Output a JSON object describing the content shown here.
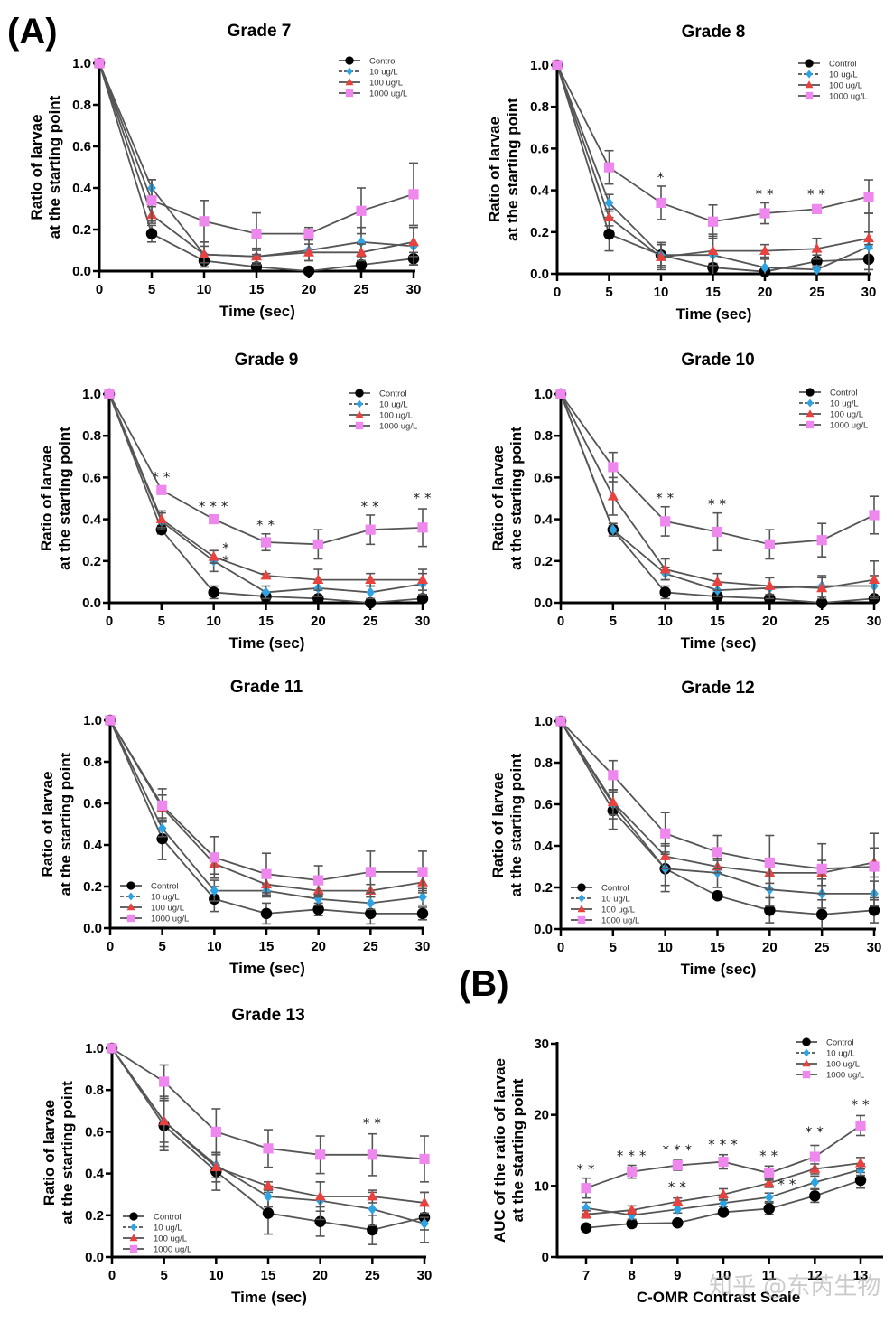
{
  "figure": {
    "panel_labels": {
      "A": "(A)",
      "B": "(B)"
    },
    "watermark": "知乎 @东芮生物",
    "series_styles": [
      {
        "name": "Control",
        "color": "#000000",
        "marker": "circle"
      },
      {
        "name": "10 ug/L",
        "color": "#2ea3e3",
        "marker": "diamond"
      },
      {
        "name": "100 ug/L",
        "color": "#e8423f",
        "marker": "triangle"
      },
      {
        "name": "1000 ug/L",
        "color": "#ee88ee",
        "marker": "square"
      }
    ],
    "line_color": "#555555"
  },
  "chart_data": [
    {
      "id": "grade7",
      "type": "line",
      "title": "Grade 7",
      "xlabel": "Time (sec)",
      "ylabel": [
        "Ratio of larvae",
        "at the starting point"
      ],
      "x": [
        0,
        5,
        10,
        15,
        20,
        25,
        30
      ],
      "xticks": [
        "0",
        "5",
        "10",
        "15",
        "20",
        "25",
        "30"
      ],
      "yticks": [
        "0.0",
        "0.2",
        "0.4",
        "0.6",
        "0.8",
        "1.0"
      ],
      "ylim": [
        0,
        1.0
      ],
      "legend": "top-right",
      "series": [
        {
          "name": "Control",
          "values": [
            1.0,
            0.18,
            0.05,
            0.02,
            0.0,
            0.03,
            0.06
          ],
          "errors": [
            0,
            0.04,
            0.03,
            0.02,
            0.0,
            0.02,
            0.03
          ]
        },
        {
          "name": "10 ug/L",
          "values": [
            1.0,
            0.4,
            0.08,
            0.07,
            0.1,
            0.14,
            0.12
          ],
          "errors": [
            0,
            0.04,
            0.06,
            0.04,
            0.05,
            0.07,
            0.09
          ]
        },
        {
          "name": "100 ug/L",
          "values": [
            1.0,
            0.27,
            0.08,
            0.07,
            0.09,
            0.09,
            0.14
          ],
          "errors": [
            0,
            0.04,
            0.04,
            0.03,
            0.04,
            0.04,
            0.07
          ]
        },
        {
          "name": "1000 ug/L",
          "values": [
            1.0,
            0.34,
            0.24,
            0.18,
            0.18,
            0.29,
            0.37
          ],
          "errors": [
            0,
            0.1,
            0.1,
            0.1,
            0.03,
            0.11,
            0.15
          ]
        }
      ],
      "annotations": []
    },
    {
      "id": "grade8",
      "type": "line",
      "title": "Grade 8",
      "xlabel": "Time (sec)",
      "ylabel": [
        "Ratio of larvae",
        "at the starting point"
      ],
      "x": [
        0,
        5,
        10,
        15,
        20,
        25,
        30
      ],
      "xticks": [
        "0",
        "5",
        "10",
        "15",
        "20",
        "25",
        "30"
      ],
      "yticks": [
        "0.0",
        "0.2",
        "0.4",
        "0.6",
        "0.8",
        "1.0"
      ],
      "ylim": [
        0,
        1.0
      ],
      "legend": "top-right",
      "series": [
        {
          "name": "Control",
          "values": [
            1.0,
            0.19,
            0.09,
            0.03,
            0.01,
            0.06,
            0.07
          ],
          "errors": [
            0,
            0.08,
            0.05,
            0.02,
            0.01,
            0.03,
            0.05
          ]
        },
        {
          "name": "10 ug/L",
          "values": [
            1.0,
            0.34,
            0.09,
            0.09,
            0.03,
            0.02,
            0.13
          ],
          "errors": [
            0,
            0.04,
            0.06,
            0.1,
            0.04,
            0.02,
            0.16
          ]
        },
        {
          "name": "100 ug/L",
          "values": [
            1.0,
            0.27,
            0.08,
            0.11,
            0.11,
            0.12,
            0.17
          ],
          "errors": [
            0,
            0.04,
            0.06,
            0.07,
            0.03,
            0.05,
            0.03
          ]
        },
        {
          "name": "1000 ug/L",
          "values": [
            1.0,
            0.51,
            0.34,
            0.25,
            0.29,
            0.31,
            0.37
          ],
          "errors": [
            0,
            0.08,
            0.08,
            0.08,
            0.05,
            0.02,
            0.08
          ]
        }
      ],
      "annotations": [
        {
          "x": 10,
          "y": 0.44,
          "text": "*"
        },
        {
          "x": 20,
          "y": 0.36,
          "text": "**"
        },
        {
          "x": 25,
          "y": 0.36,
          "text": "**"
        }
      ]
    },
    {
      "id": "grade9",
      "type": "line",
      "title": "Grade 9",
      "xlabel": "Time (sec)",
      "ylabel": [
        "Ratio of larvae",
        "at the starting point"
      ],
      "x": [
        0,
        5,
        10,
        15,
        20,
        25,
        30
      ],
      "xticks": [
        "0",
        "5",
        "10",
        "15",
        "20",
        "25",
        "30"
      ],
      "yticks": [
        "0.0",
        "0.2",
        "0.4",
        "0.6",
        "0.8",
        "1.0"
      ],
      "ylim": [
        0,
        1.0
      ],
      "legend": "top-right",
      "series": [
        {
          "name": "Control",
          "values": [
            1.0,
            0.35,
            0.05,
            0.03,
            0.02,
            0.0,
            0.02
          ],
          "errors": [
            0,
            0.02,
            0.03,
            0.02,
            0.01,
            0.01,
            0.01
          ]
        },
        {
          "name": "10 ug/L",
          "values": [
            1.0,
            0.39,
            0.2,
            0.05,
            0.07,
            0.05,
            0.09
          ],
          "errors": [
            0,
            0.04,
            0.05,
            0.03,
            0.04,
            0.03,
            0.05
          ]
        },
        {
          "name": "100 ug/L",
          "values": [
            1.0,
            0.4,
            0.22,
            0.13,
            0.11,
            0.11,
            0.11
          ],
          "errors": [
            0,
            0.04,
            0.03,
            0.01,
            0.05,
            0.03,
            0.05
          ]
        },
        {
          "name": "1000 ug/L",
          "values": [
            1.0,
            0.54,
            0.4,
            0.29,
            0.28,
            0.35,
            0.36
          ],
          "errors": [
            0,
            0.01,
            0.02,
            0.04,
            0.07,
            0.07,
            0.09
          ]
        }
      ],
      "annotations": [
        {
          "x": 5,
          "y": 0.58,
          "text": "**"
        },
        {
          "x": 10,
          "y": 0.44,
          "text": "***"
        },
        {
          "x": 15,
          "y": 0.35,
          "text": "**"
        },
        {
          "x": 25,
          "y": 0.44,
          "text": "**"
        },
        {
          "x": 30,
          "y": 0.48,
          "text": "**"
        },
        {
          "x": 11.2,
          "y": 0.24,
          "text": "*"
        },
        {
          "x": 11.2,
          "y": 0.18,
          "text": "*"
        }
      ]
    },
    {
      "id": "grade10",
      "type": "line",
      "title": "Grade 10",
      "xlabel": "Time (sec)",
      "ylabel": [
        "Ratio of larvae",
        "at the starting point"
      ],
      "x": [
        0,
        5,
        10,
        15,
        20,
        25,
        30
      ],
      "xticks": [
        "0",
        "5",
        "10",
        "15",
        "20",
        "25",
        "30"
      ],
      "yticks": [
        "0.0",
        "0.2",
        "0.4",
        "0.6",
        "0.8",
        "1.0"
      ],
      "ylim": [
        0,
        1.0
      ],
      "legend": "top-right",
      "series": [
        {
          "name": "Control",
          "values": [
            1.0,
            0.35,
            0.05,
            0.03,
            0.02,
            0.0,
            0.02
          ],
          "errors": [
            0,
            0.02,
            0.03,
            0.02,
            0.01,
            0.01,
            0.01
          ]
        },
        {
          "name": "10 ug/L",
          "values": [
            1.0,
            0.35,
            0.14,
            0.06,
            0.07,
            0.08,
            0.08
          ],
          "errors": [
            0,
            0.03,
            0.03,
            0.03,
            0.05,
            0.05,
            0.05
          ]
        },
        {
          "name": "100 ug/L",
          "values": [
            1.0,
            0.51,
            0.16,
            0.1,
            0.08,
            0.07,
            0.11
          ],
          "errors": [
            0,
            0.09,
            0.05,
            0.04,
            0.04,
            0.05,
            0.09
          ]
        },
        {
          "name": "1000 ug/L",
          "values": [
            1.0,
            0.65,
            0.39,
            0.34,
            0.28,
            0.3,
            0.42
          ],
          "errors": [
            0,
            0.07,
            0.07,
            0.09,
            0.07,
            0.08,
            0.09
          ]
        }
      ],
      "annotations": [
        {
          "x": 10,
          "y": 0.48,
          "text": "**"
        },
        {
          "x": 15,
          "y": 0.45,
          "text": "**"
        }
      ]
    },
    {
      "id": "grade11",
      "type": "line",
      "title": "Grade 11",
      "xlabel": "Time (sec)",
      "ylabel": [
        "Ratio of larvae",
        "at the starting point"
      ],
      "x": [
        0,
        5,
        10,
        15,
        20,
        25,
        30
      ],
      "xticks": [
        "0",
        "5",
        "10",
        "15",
        "20",
        "25",
        "30"
      ],
      "yticks": [
        "0.0",
        "0.2",
        "0.4",
        "0.6",
        "0.8",
        "1.0"
      ],
      "ylim": [
        0,
        1.0
      ],
      "legend": "bottom-left",
      "series": [
        {
          "name": "Control",
          "values": [
            1.0,
            0.43,
            0.14,
            0.07,
            0.09,
            0.07,
            0.07
          ],
          "errors": [
            0,
            0.1,
            0.06,
            0.05,
            0.03,
            0.05,
            0.03
          ]
        },
        {
          "name": "10 ug/L",
          "values": [
            1.0,
            0.48,
            0.18,
            0.18,
            0.14,
            0.12,
            0.15
          ],
          "errors": [
            0,
            0.04,
            0.05,
            0.03,
            0.03,
            0.03,
            0.04
          ]
        },
        {
          "name": "100 ug/L",
          "values": [
            1.0,
            0.58,
            0.31,
            0.21,
            0.18,
            0.18,
            0.22
          ],
          "errors": [
            0,
            0.06,
            0.05,
            0.04,
            0.03,
            0.03,
            0.04
          ]
        },
        {
          "name": "1000 ug/L",
          "values": [
            1.0,
            0.59,
            0.34,
            0.26,
            0.23,
            0.27,
            0.27
          ],
          "errors": [
            0,
            0.08,
            0.1,
            0.1,
            0.07,
            0.1,
            0.1
          ]
        }
      ],
      "annotations": []
    },
    {
      "id": "grade12",
      "type": "line",
      "title": "Grade 12",
      "xlabel": "Time (sec)",
      "ylabel": [
        "Ratio of larvae",
        "at the starting point"
      ],
      "x": [
        0,
        5,
        10,
        15,
        20,
        25,
        30
      ],
      "xticks": [
        "0",
        "5",
        "10",
        "15",
        "20",
        "25",
        "30"
      ],
      "yticks": [
        "0.0",
        "0.2",
        "0.4",
        "0.6",
        "0.8",
        "1.0"
      ],
      "ylim": [
        0,
        1.0
      ],
      "legend": "bottom-left",
      "series": [
        {
          "name": "Control",
          "values": [
            1.0,
            0.57,
            0.29,
            0.16,
            0.09,
            0.07,
            0.09
          ],
          "errors": [
            0,
            0.09,
            0.11,
            0.01,
            0.06,
            0.07,
            0.06
          ]
        },
        {
          "name": "10 ug/L",
          "values": [
            1.0,
            0.6,
            0.29,
            0.27,
            0.19,
            0.17,
            0.17
          ],
          "errors": [
            0,
            0.07,
            0.08,
            0.07,
            0.08,
            0.07,
            0.06
          ]
        },
        {
          "name": "100 ug/L",
          "values": [
            1.0,
            0.61,
            0.35,
            0.3,
            0.27,
            0.27,
            0.32
          ],
          "errors": [
            0,
            0.06,
            0.06,
            0.03,
            0.05,
            0.06,
            0.07
          ]
        },
        {
          "name": "1000 ug/L",
          "values": [
            1.0,
            0.74,
            0.46,
            0.37,
            0.32,
            0.29,
            0.3
          ],
          "errors": [
            0,
            0.07,
            0.1,
            0.08,
            0.13,
            0.12,
            0.16
          ]
        }
      ],
      "annotations": []
    },
    {
      "id": "grade13",
      "type": "line",
      "title": "Grade 13",
      "xlabel": "Time (sec)",
      "ylabel": [
        "Ratio of larvae",
        "at the starting point"
      ],
      "x": [
        0,
        5,
        10,
        15,
        20,
        25,
        30
      ],
      "xticks": [
        "0",
        "5",
        "10",
        "15",
        "20",
        "25",
        "30"
      ],
      "yticks": [
        "0.0",
        "0.2",
        "0.4",
        "0.6",
        "0.8",
        "1.0"
      ],
      "ylim": [
        0,
        1.0
      ],
      "legend": "bottom-left",
      "series": [
        {
          "name": "Control",
          "values": [
            1.0,
            0.63,
            0.41,
            0.21,
            0.17,
            0.13,
            0.19
          ],
          "errors": [
            0,
            0.12,
            0.09,
            0.1,
            0.07,
            0.07,
            0.12
          ]
        },
        {
          "name": "10 ug/L",
          "values": [
            1.0,
            0.65,
            0.44,
            0.29,
            0.27,
            0.23,
            0.16
          ],
          "errors": [
            0,
            0.1,
            0.06,
            0.05,
            0.09,
            0.08,
            0.03
          ]
        },
        {
          "name": "100 ug/L",
          "values": [
            1.0,
            0.65,
            0.43,
            0.34,
            0.29,
            0.29,
            0.26
          ],
          "errors": [
            0,
            0.12,
            0.07,
            0.02,
            0.07,
            0.03,
            0.05
          ]
        },
        {
          "name": "1000 ug/L",
          "values": [
            1.0,
            0.84,
            0.6,
            0.52,
            0.49,
            0.49,
            0.47
          ],
          "errors": [
            0,
            0.08,
            0.11,
            0.09,
            0.09,
            0.1,
            0.11
          ]
        }
      ],
      "annotations": [
        {
          "x": 25,
          "y": 0.62,
          "text": "**"
        }
      ]
    },
    {
      "id": "auc",
      "type": "line",
      "title": "",
      "xlabel": "C-OMR Contrast Scale",
      "ylabel": [
        "AUC of the ratio of larvae",
        "at the starting point"
      ],
      "x": [
        7,
        8,
        9,
        10,
        11,
        12,
        13
      ],
      "xticks": [
        "7",
        "8",
        "9",
        "10",
        "11",
        "12",
        "13"
      ],
      "yticks": [
        "0",
        "10",
        "20",
        "30"
      ],
      "ylim": [
        0,
        30
      ],
      "legend": "top-right",
      "series": [
        {
          "name": "Control",
          "values": [
            4.1,
            4.7,
            4.8,
            6.3,
            6.8,
            8.6,
            10.8
          ],
          "errors": [
            0.3,
            0.5,
            0.3,
            0.4,
            0.8,
            0.9,
            1.1
          ]
        },
        {
          "name": "10 ug/L",
          "values": [
            6.9,
            5.9,
            6.7,
            7.6,
            8.4,
            10.5,
            12.3
          ],
          "errors": [
            0.8,
            0.6,
            0.5,
            0.5,
            0.6,
            0.9,
            0.8
          ]
        },
        {
          "name": "100 ug/L",
          "values": [
            6.0,
            6.6,
            7.8,
            8.8,
            10.4,
            12.4,
            13.2
          ],
          "errors": [
            0.5,
            0.6,
            0.5,
            0.8,
            0.6,
            0.7,
            0.8
          ]
        },
        {
          "name": "1000 ug/L",
          "values": [
            9.7,
            12.0,
            12.9,
            13.4,
            11.8,
            14.1,
            18.5
          ],
          "errors": [
            1.4,
            0.9,
            0.7,
            1.0,
            1.0,
            1.6,
            1.4
          ]
        }
      ],
      "annotations": [
        {
          "x": 7,
          "y": 11.7,
          "text": "**"
        },
        {
          "x": 8,
          "y": 13.6,
          "text": "***"
        },
        {
          "x": 9,
          "y": 14.4,
          "text": "***"
        },
        {
          "x": 10,
          "y": 15.2,
          "text": "***"
        },
        {
          "x": 11,
          "y": 13.6,
          "text": "**"
        },
        {
          "x": 12,
          "y": 17.0,
          "text": "**"
        },
        {
          "x": 13,
          "y": 20.8,
          "text": "**"
        },
        {
          "x": 9,
          "y": 9.2,
          "text": "**"
        },
        {
          "x": 11.4,
          "y": 9.6,
          "text": "**"
        }
      ]
    }
  ]
}
